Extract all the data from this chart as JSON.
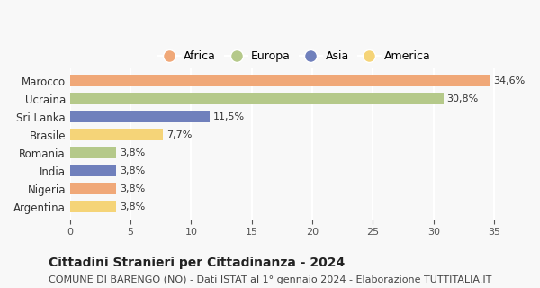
{
  "categories": [
    "Marocco",
    "Ucraina",
    "Sri Lanka",
    "Brasile",
    "Romania",
    "India",
    "Nigeria",
    "Argentina"
  ],
  "values": [
    34.6,
    30.8,
    11.5,
    7.7,
    3.8,
    3.8,
    3.8,
    3.8
  ],
  "labels": [
    "34,6%",
    "30,8%",
    "11,5%",
    "7,7%",
    "3,8%",
    "3,8%",
    "3,8%",
    "3,8%"
  ],
  "colors": [
    "#F0A878",
    "#B5C98A",
    "#7080BC",
    "#F5D478",
    "#B5C98A",
    "#7080BC",
    "#F0A878",
    "#F5D478"
  ],
  "continents": [
    "Africa",
    "Europa",
    "Asia",
    "America"
  ],
  "legend_colors": [
    "#F0A878",
    "#B5C98A",
    "#7080BC",
    "#F5D478"
  ],
  "title": "Cittadini Stranieri per Cittadinanza - 2024",
  "subtitle": "COMUNE DI BARENGO (NO) - Dati ISTAT al 1° gennaio 2024 - Elaborazione TUTTITALIA.IT",
  "xlim": [
    0,
    37
  ],
  "xticks": [
    0,
    5,
    10,
    15,
    20,
    25,
    30,
    35
  ],
  "background_color": "#f8f8f8",
  "grid_color": "#ffffff",
  "title_fontsize": 10,
  "subtitle_fontsize": 8,
  "bar_height": 0.65
}
